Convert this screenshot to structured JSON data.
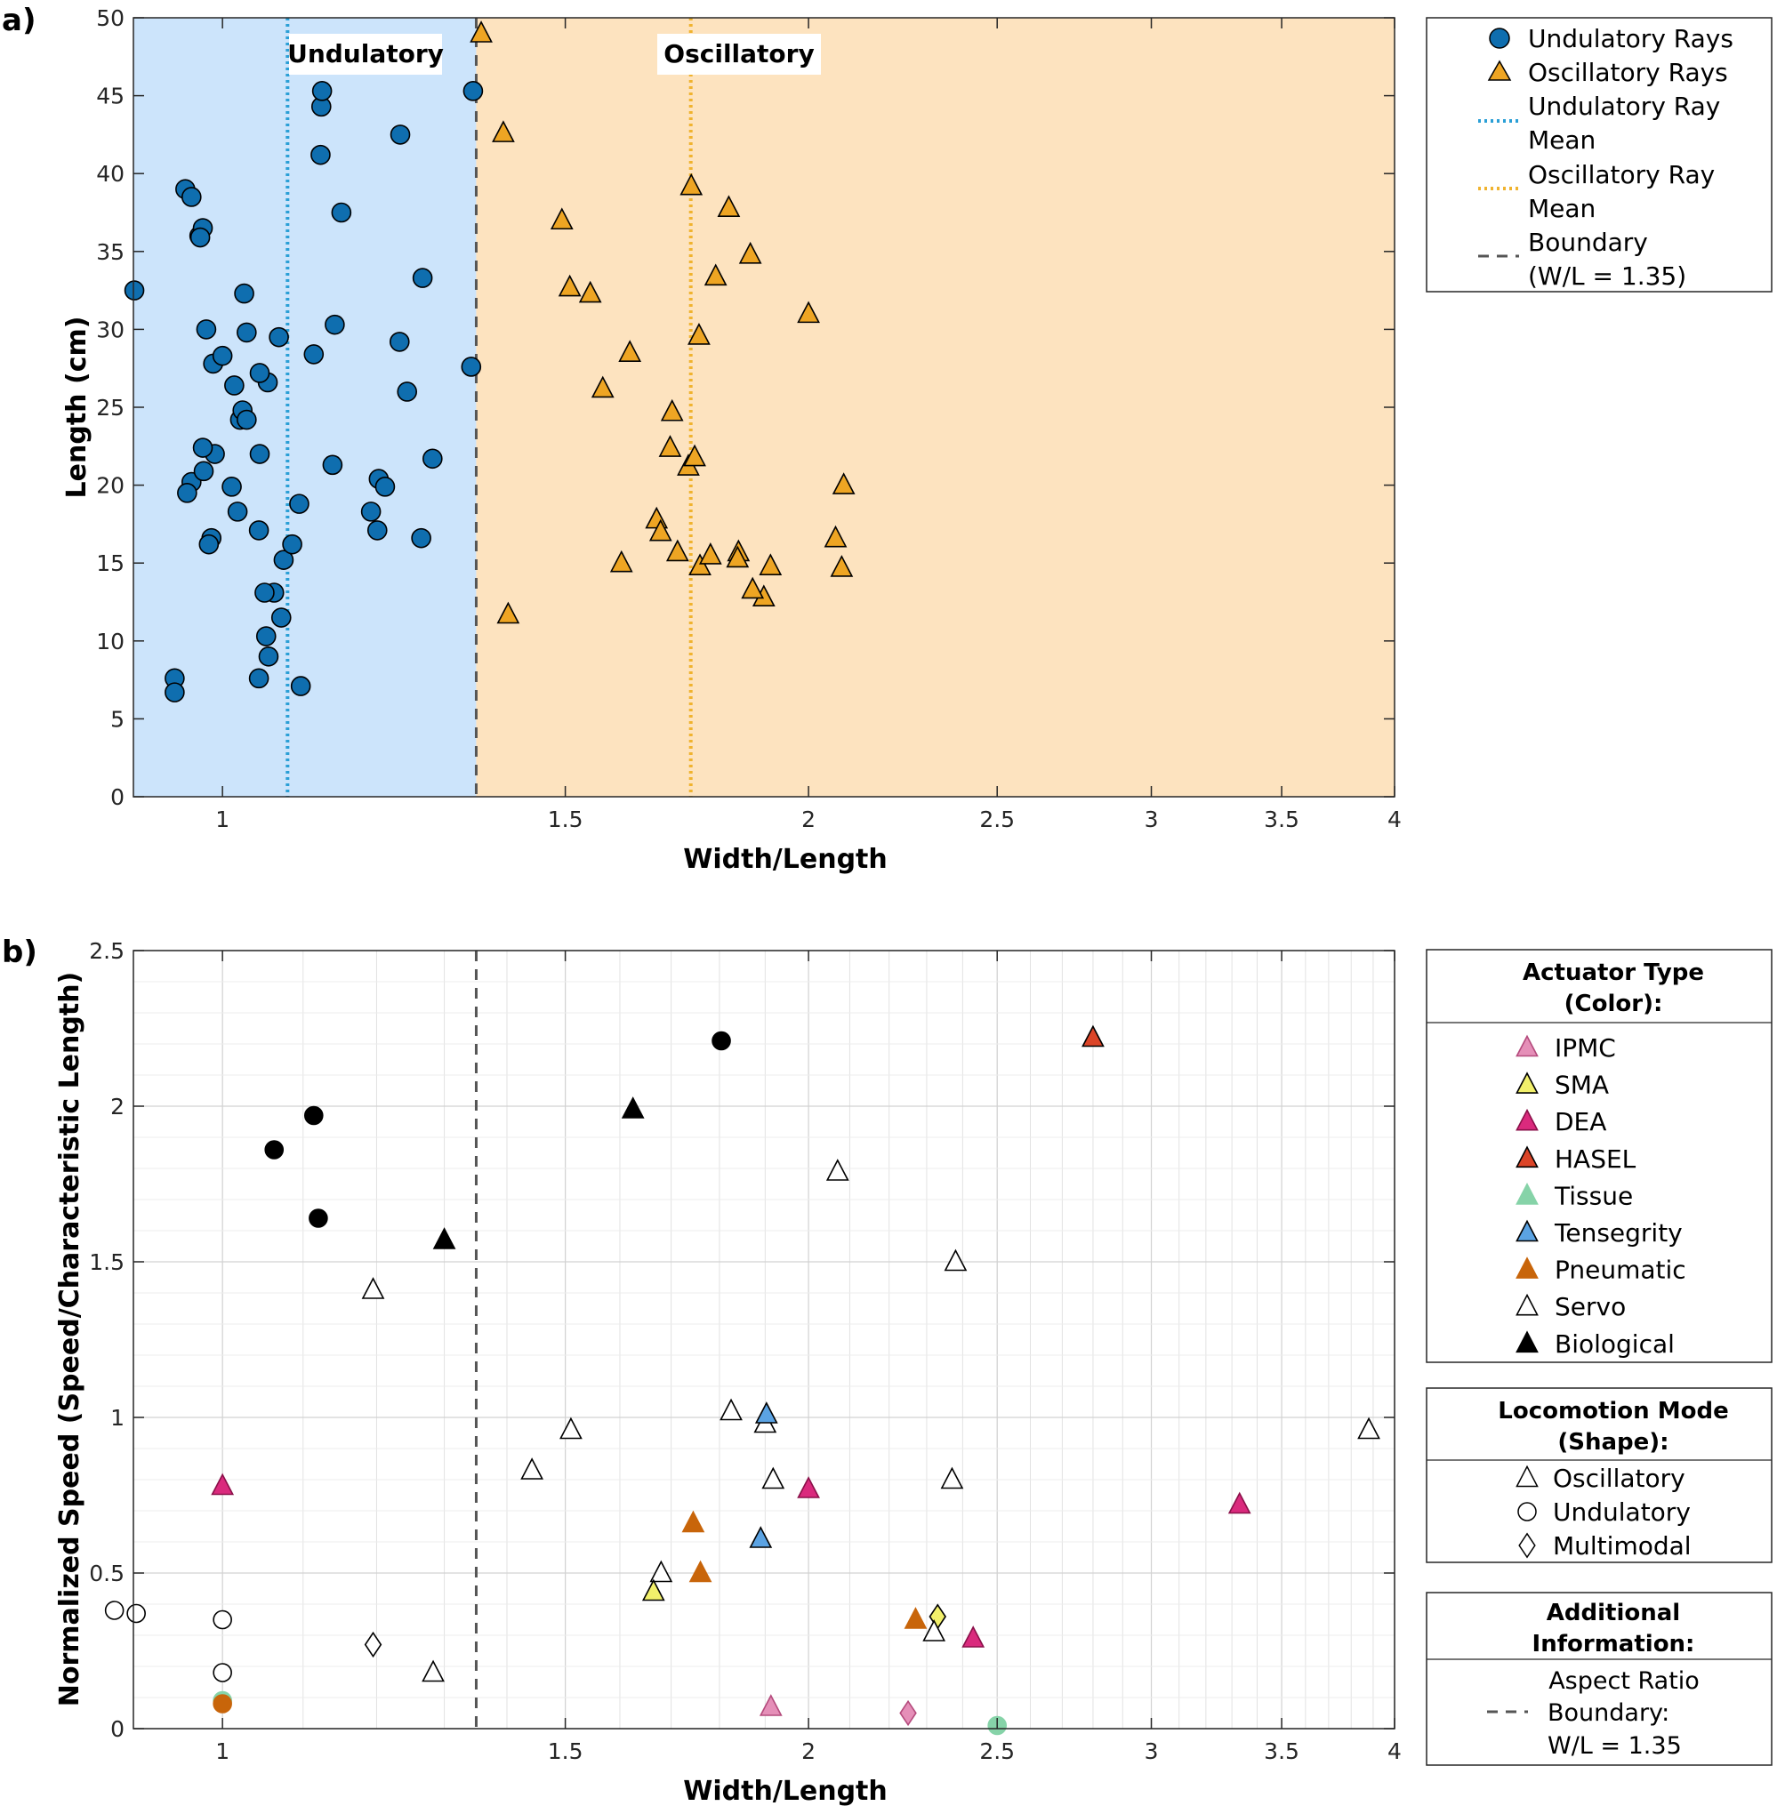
{
  "colors": {
    "undulatory_bg": "#cce4fb",
    "oscillatory_bg": "#fde3bf",
    "undulatory_marker": "#0f6eaf",
    "oscillatory_marker": "#eea523",
    "undulatory_mean": "#2a9fd6",
    "oscillatory_mean": "#f0b32f",
    "boundary": "#555555",
    "IPMC": "#e58fb8",
    "SMA": "#f2f06b",
    "DEA": "#da2a7d",
    "HASEL": "#dc4528",
    "Tissue": "#86d3a8",
    "Tensegrity": "#5ba3e3",
    "Pneumatic": "#c8650a",
    "Servo": "#ffffff",
    "Biological": "#000000"
  },
  "chart_data": [
    {
      "panel_label": "a)",
      "type": "scatter",
      "xscale": "log",
      "xlim": [
        0.9,
        4
      ],
      "ylim": [
        0,
        50
      ],
      "xticks": [
        1,
        1.5,
        2,
        2.5,
        3,
        3.5,
        4
      ],
      "xtick_labels": [
        "1",
        "1.5",
        "2",
        "2.5",
        "3",
        "3.5",
        "4"
      ],
      "yticks": [
        0,
        5,
        10,
        15,
        20,
        25,
        30,
        35,
        40,
        45,
        50
      ],
      "ytick_labels": [
        "0",
        "5",
        "10",
        "15",
        "20",
        "25",
        "30",
        "35",
        "40",
        "45",
        "50"
      ],
      "xlabel": "Width/Length",
      "ylabel": "Length (cm)",
      "region_labels": [
        "Undulatory",
        "Oscillatory"
      ],
      "boundary_x": 1.35,
      "undulatory_mean_x": 1.08,
      "oscillatory_mean_x": 1.74,
      "legend": {
        "undulatory_rays": "Undulatory Rays",
        "oscillatory_rays": "Oscillatory Rays",
        "undulatory_mean_l1": "Undulatory Ray",
        "undulatory_mean_l2": "Mean",
        "oscillatory_mean_l1": "Oscillatory Ray",
        "oscillatory_mean_l2": "Mean",
        "boundary_l1": "Boundary",
        "boundary_l2": "(W/L = 1.35)"
      },
      "series": [
        {
          "name": "Undulatory Rays",
          "marker": "circle",
          "x": [
            0.901,
            0.957,
            0.964,
            0.973,
            0.981,
            0.989,
            0.991,
            0.964,
            0.959,
            0.977,
            0.978,
            0.945,
            0.945,
            0.977,
            0.974,
            1.0,
            1.011,
            1.014,
            1.026,
            1.021,
            1.024,
            1.055,
            1.045,
            1.029,
            1.029,
            1.045,
            1.075,
            1.086,
            1.069,
            1.114,
            1.142,
            1.151,
            1.123,
            1.124,
            1.125,
            1.139,
            1.203,
            1.212,
            1.233,
            1.244,
            1.234,
            1.267,
            1.282,
            1.342,
            1.345,
            1.192,
            1.201,
            1.265,
            1.063,
            1.072,
            1.053,
            1.056,
            1.095,
            1.097,
            1.044,
            1.044,
            1.018,
            0.987,
            0.984,
            1.051
          ],
          "y": [
            32.5,
            39.0,
            38.5,
            36.0,
            30.0,
            27.8,
            22.0,
            20.2,
            19.5,
            22.4,
            20.9,
            7.6,
            6.7,
            36.5,
            35.9,
            28.3,
            19.9,
            26.4,
            32.3,
            24.2,
            24.8,
            26.6,
            27.2,
            29.8,
            24.2,
            22.0,
            15.2,
            16.2,
            29.5,
            28.4,
            30.3,
            37.5,
            41.2,
            44.3,
            45.3,
            21.3,
            20.4,
            19.9,
            29.2,
            26.0,
            42.5,
            33.3,
            21.7,
            27.6,
            45.3,
            18.3,
            17.1,
            16.6,
            13.1,
            11.5,
            10.3,
            9.0,
            18.8,
            7.1,
            7.6,
            17.1,
            18.3,
            16.6,
            16.2,
            13.1
          ]
        },
        {
          "name": "Oscillatory Rays",
          "marker": "triangle",
          "x": [
            1.358,
            1.394,
            1.402,
            1.494,
            1.508,
            1.545,
            1.568,
            1.619,
            1.698,
            1.702,
            1.735,
            1.748,
            1.757,
            1.82,
            1.792,
            1.867,
            2.0,
            1.713,
            1.759,
            1.671,
            1.679,
            1.603,
            1.741,
            1.781,
            1.841,
            1.839,
            1.912,
            1.897,
            1.872,
            2.065,
            2.085,
            2.08
          ],
          "y": [
            49.0,
            42.6,
            11.7,
            37.0,
            32.7,
            32.3,
            26.2,
            28.5,
            22.4,
            24.7,
            21.2,
            21.8,
            29.6,
            37.8,
            33.4,
            34.8,
            31.0,
            15.7,
            14.8,
            17.8,
            17.0,
            15.0,
            39.2,
            15.5,
            15.7,
            15.3,
            14.8,
            12.8,
            13.3,
            16.6,
            20.0,
            14.7
          ]
        }
      ]
    },
    {
      "panel_label": "b)",
      "type": "scatter",
      "xscale": "log",
      "xlim": [
        0.9,
        4
      ],
      "ylim": [
        0,
        2.5
      ],
      "xticks": [
        1,
        1.5,
        2,
        2.5,
        3,
        3.5,
        4
      ],
      "xtick_labels": [
        "1",
        "1.5",
        "2",
        "2.5",
        "3",
        "3.5",
        "4"
      ],
      "yticks": [
        0,
        0.5,
        1,
        1.5,
        2,
        2.5
      ],
      "ytick_labels": [
        "0",
        "0.5",
        "1",
        "1.5",
        "2",
        "2.5"
      ],
      "xlabel": "Width/Length",
      "ylabel": "Normalized Speed (Speed/Characteristic Length)",
      "boundary_x": 1.35,
      "grid": true,
      "points": [
        {
          "x": 1.063,
          "y": 1.86,
          "shape": "circle",
          "actuator": "Biological"
        },
        {
          "x": 1.114,
          "y": 1.97,
          "shape": "circle",
          "actuator": "Biological"
        },
        {
          "x": 1.12,
          "y": 1.64,
          "shape": "circle",
          "actuator": "Biological"
        },
        {
          "x": 1.3,
          "y": 1.57,
          "shape": "triangle",
          "actuator": "Biological"
        },
        {
          "x": 1.625,
          "y": 1.99,
          "shape": "triangle",
          "actuator": "Biological"
        },
        {
          "x": 1.804,
          "y": 2.21,
          "shape": "circle",
          "actuator": "Biological"
        },
        {
          "x": 2.8,
          "y": 2.22,
          "shape": "triangle",
          "actuator": "HASEL"
        },
        {
          "x": 2.07,
          "y": 1.79,
          "shape": "triangle",
          "actuator": "Servo"
        },
        {
          "x": 2.38,
          "y": 1.5,
          "shape": "triangle",
          "actuator": "Servo"
        },
        {
          "x": 1.195,
          "y": 1.41,
          "shape": "triangle",
          "actuator": "Servo"
        },
        {
          "x": 1.825,
          "y": 1.02,
          "shape": "triangle",
          "actuator": "Servo"
        },
        {
          "x": 1.51,
          "y": 0.96,
          "shape": "triangle",
          "actuator": "Servo"
        },
        {
          "x": 1.442,
          "y": 0.83,
          "shape": "triangle",
          "actuator": "Servo"
        },
        {
          "x": 1.9,
          "y": 0.98,
          "shape": "triangle",
          "actuator": "Servo"
        },
        {
          "x": 1.903,
          "y": 1.01,
          "shape": "triangle",
          "actuator": "Tensegrity"
        },
        {
          "x": 1.918,
          "y": 0.8,
          "shape": "triangle",
          "actuator": "Servo"
        },
        {
          "x": 2.37,
          "y": 0.8,
          "shape": "triangle",
          "actuator": "Servo"
        },
        {
          "x": 3.88,
          "y": 0.96,
          "shape": "triangle",
          "actuator": "Servo"
        },
        {
          "x": 1.0,
          "y": 0.78,
          "shape": "triangle",
          "actuator": "DEA"
        },
        {
          "x": 2.0,
          "y": 0.77,
          "shape": "triangle",
          "actuator": "DEA"
        },
        {
          "x": 3.33,
          "y": 0.72,
          "shape": "triangle",
          "actuator": "DEA"
        },
        {
          "x": 2.43,
          "y": 0.29,
          "shape": "triangle",
          "actuator": "DEA"
        },
        {
          "x": 1.89,
          "y": 0.61,
          "shape": "triangle",
          "actuator": "Tensegrity"
        },
        {
          "x": 1.745,
          "y": 0.66,
          "shape": "triangle",
          "actuator": "Pneumatic"
        },
        {
          "x": 1.76,
          "y": 0.5,
          "shape": "triangle",
          "actuator": "Pneumatic"
        },
        {
          "x": 2.27,
          "y": 0.35,
          "shape": "triangle",
          "actuator": "Pneumatic"
        },
        {
          "x": 1.68,
          "y": 0.5,
          "shape": "triangle",
          "actuator": "Servo"
        },
        {
          "x": 1.665,
          "y": 0.44,
          "shape": "triangle",
          "actuator": "SMA"
        },
        {
          "x": 2.33,
          "y": 0.36,
          "shape": "diamond",
          "actuator": "SMA"
        },
        {
          "x": 2.32,
          "y": 0.31,
          "shape": "triangle",
          "actuator": "Servo"
        },
        {
          "x": 0.88,
          "y": 0.38,
          "shape": "circle",
          "actuator": "Servo"
        },
        {
          "x": 0.903,
          "y": 0.37,
          "shape": "circle",
          "actuator": "Servo"
        },
        {
          "x": 1.0,
          "y": 0.35,
          "shape": "circle",
          "actuator": "Servo"
        },
        {
          "x": 1.0,
          "y": 0.18,
          "shape": "circle",
          "actuator": "Servo"
        },
        {
          "x": 1.195,
          "y": 0.27,
          "shape": "diamond",
          "actuator": "Servo"
        },
        {
          "x": 1.283,
          "y": 0.18,
          "shape": "triangle",
          "actuator": "Servo"
        },
        {
          "x": 1.0,
          "y": 0.09,
          "shape": "circle",
          "actuator": "Tissue"
        },
        {
          "x": 1.0,
          "y": 0.08,
          "shape": "circle",
          "actuator": "Pneumatic"
        },
        {
          "x": 1.913,
          "y": 0.07,
          "shape": "triangle",
          "actuator": "IPMC"
        },
        {
          "x": 2.25,
          "y": 0.05,
          "shape": "diamond",
          "actuator": "IPMC"
        },
        {
          "x": 2.5,
          "y": 0.01,
          "shape": "circle",
          "actuator": "Tissue"
        }
      ],
      "legends": {
        "actuator_title_l1": "Actuator Type",
        "actuator_title_l2": "(Color):",
        "actuator_items": [
          {
            "label": "IPMC",
            "key": "IPMC"
          },
          {
            "label": "SMA",
            "key": "SMA"
          },
          {
            "label": "DEA",
            "key": "DEA"
          },
          {
            "label": "HASEL",
            "key": "HASEL"
          },
          {
            "label": "Tissue",
            "key": "Tissue"
          },
          {
            "label": "Tensegrity",
            "key": "Tensegrity"
          },
          {
            "label": "Pneumatic",
            "key": "Pneumatic"
          },
          {
            "label": "Servo",
            "key": "Servo"
          },
          {
            "label": "Biological",
            "key": "Biological"
          }
        ],
        "mode_title_l1": "Locomotion Mode",
        "mode_title_l2": "(Shape):",
        "mode_items": [
          {
            "label": "Oscillatory",
            "shape": "triangle"
          },
          {
            "label": "Undulatory",
            "shape": "circle"
          },
          {
            "label": "Multimodal",
            "shape": "diamond"
          }
        ],
        "info_title_l1": "Additional",
        "info_title_l2": "Information:",
        "info_l1": "Aspect Ratio",
        "info_l2": "Boundary:",
        "info_l3": "W/L = 1.35"
      }
    }
  ]
}
